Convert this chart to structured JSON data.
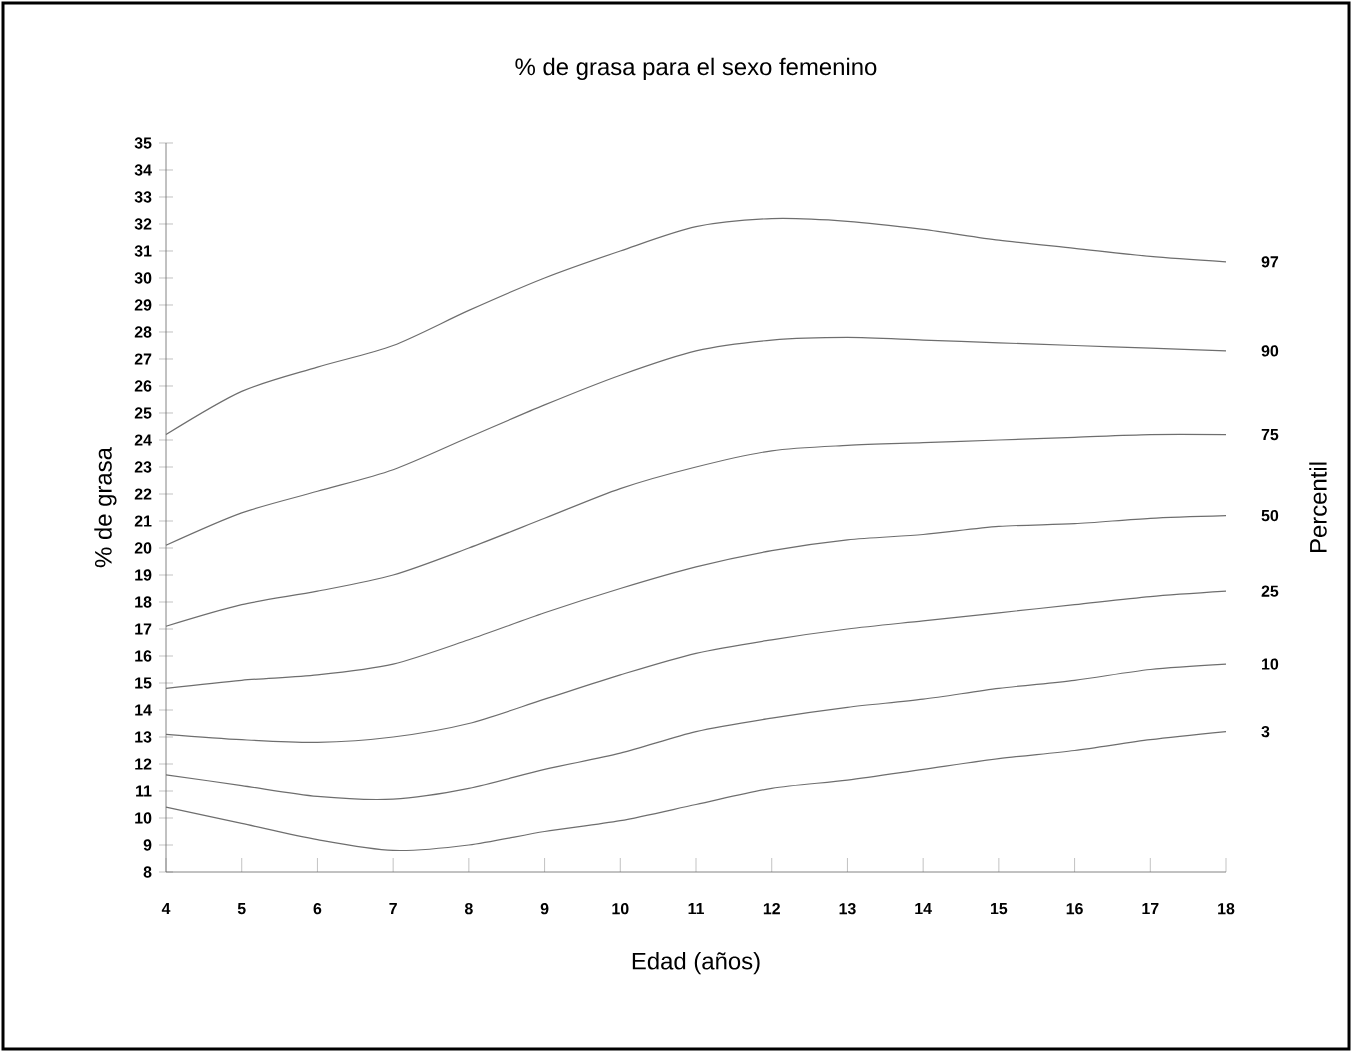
{
  "chart_data": {
    "type": "line",
    "title": "% de grasa para el sexo femenino",
    "xlabel": "Edad (años)",
    "ylabel": "% de grasa",
    "y2label": "Percentil",
    "x": [
      4,
      5,
      6,
      7,
      8,
      9,
      10,
      11,
      12,
      13,
      14,
      15,
      16,
      17,
      18
    ],
    "xlim": [
      4,
      18
    ],
    "ylim": [
      8,
      35
    ],
    "xticks": [
      4,
      5,
      6,
      7,
      8,
      9,
      10,
      11,
      12,
      13,
      14,
      15,
      16,
      17,
      18
    ],
    "yticks": [
      8,
      9,
      10,
      11,
      12,
      13,
      14,
      15,
      16,
      17,
      18,
      19,
      20,
      21,
      22,
      23,
      24,
      25,
      26,
      27,
      28,
      29,
      30,
      31,
      32,
      33,
      34,
      35
    ],
    "series": [
      {
        "name": "97",
        "color": "#6e6e6e",
        "values": [
          24.2,
          25.8,
          26.7,
          27.5,
          28.8,
          30.0,
          31.0,
          31.9,
          32.2,
          32.1,
          31.8,
          31.4,
          31.1,
          30.8,
          30.6
        ]
      },
      {
        "name": "90",
        "color": "#6e6e6e",
        "values": [
          20.1,
          21.3,
          22.1,
          22.9,
          24.1,
          25.3,
          26.4,
          27.3,
          27.7,
          27.8,
          27.7,
          27.6,
          27.5,
          27.4,
          27.3
        ]
      },
      {
        "name": "75",
        "color": "#6e6e6e",
        "values": [
          17.1,
          17.9,
          18.4,
          19.0,
          20.0,
          21.1,
          22.2,
          23.0,
          23.6,
          23.8,
          23.9,
          24.0,
          24.1,
          24.2,
          24.2
        ]
      },
      {
        "name": "50",
        "color": "#6e6e6e",
        "values": [
          14.8,
          15.1,
          15.3,
          15.7,
          16.6,
          17.6,
          18.5,
          19.3,
          19.9,
          20.3,
          20.5,
          20.8,
          20.9,
          21.1,
          21.2
        ]
      },
      {
        "name": "25",
        "color": "#6e6e6e",
        "values": [
          13.1,
          12.9,
          12.8,
          13.0,
          13.5,
          14.4,
          15.3,
          16.1,
          16.6,
          17.0,
          17.3,
          17.6,
          17.9,
          18.2,
          18.4
        ]
      },
      {
        "name": "10",
        "color": "#6e6e6e",
        "values": [
          11.6,
          11.2,
          10.8,
          10.7,
          11.1,
          11.8,
          12.4,
          13.2,
          13.7,
          14.1,
          14.4,
          14.8,
          15.1,
          15.5,
          15.7
        ]
      },
      {
        "name": "3",
        "color": "#6e6e6e",
        "values": [
          10.4,
          9.8,
          9.2,
          8.8,
          9.0,
          9.5,
          9.9,
          10.5,
          11.1,
          11.4,
          11.8,
          12.2,
          12.5,
          12.9,
          13.2
        ]
      }
    ]
  }
}
